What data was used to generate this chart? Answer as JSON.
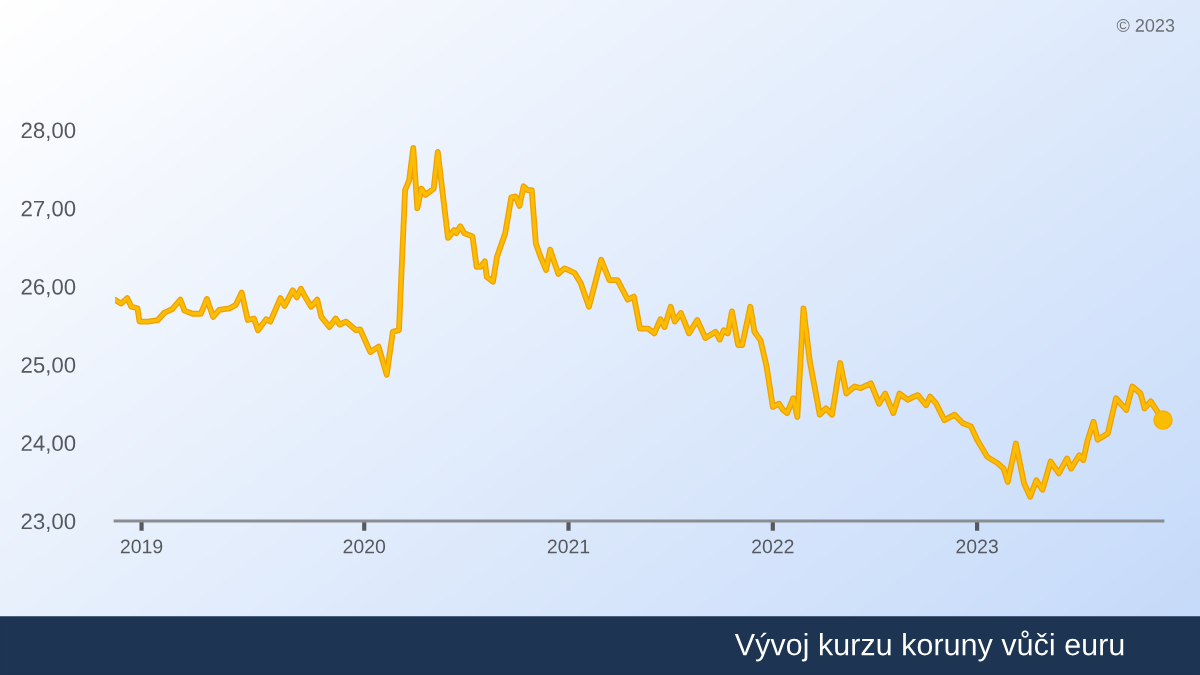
{
  "chart_data": {
    "type": "line",
    "title": "Vývoj kurzu koruny vůči euru",
    "annotations": [
      "© 2023"
    ],
    "xlim": [
      2018.78,
      2023.91
    ],
    "xticks": [
      {
        "value": 2018.91,
        "label": "2019"
      },
      2020,
      2021,
      2022,
      2023
    ],
    "ylim": [
      23,
      28
    ],
    "yticks": [
      {
        "value": 23,
        "label": "23,00"
      },
      {
        "value": 24,
        "label": "24,00"
      },
      {
        "value": 25,
        "label": "25,00"
      },
      {
        "value": 26,
        "label": "26,00"
      },
      {
        "value": 27,
        "label": "27,00"
      },
      {
        "value": 28,
        "label": "28,00"
      }
    ],
    "grid": false,
    "legend": false,
    "marker": "none",
    "line_style": "solid",
    "series": [
      {
        "color": "#fbbc04",
        "x": [
          2018.78,
          2018.81,
          2018.84,
          2018.86,
          2018.89,
          2018.9,
          2018.94,
          2018.99,
          2019.02,
          2019.06,
          2019.1,
          2019.12,
          2019.16,
          2019.2,
          2019.23,
          2019.26,
          2019.29,
          2019.34,
          2019.37,
          2019.4,
          2019.43,
          2019.46,
          2019.48,
          2019.52,
          2019.54,
          2019.59,
          2019.61,
          2019.65,
          2019.67,
          2019.69,
          2019.71,
          2019.74,
          2019.77,
          2019.79,
          2019.83,
          2019.86,
          2019.88,
          2019.91,
          2019.96,
          2019.98,
          2020.03,
          2020.07,
          2020.11,
          2020.14,
          2020.17,
          2020.2,
          2020.22,
          2020.24,
          2020.26,
          2020.28,
          2020.3,
          2020.34,
          2020.36,
          2020.38,
          2020.41,
          2020.44,
          2020.45,
          2020.47,
          2020.49,
          2020.53,
          2020.55,
          2020.57,
          2020.59,
          2020.6,
          2020.63,
          2020.65,
          2020.69,
          2020.72,
          2020.74,
          2020.76,
          2020.78,
          2020.8,
          2020.82,
          2020.84,
          2020.86,
          2020.89,
          2020.91,
          2020.95,
          2020.98,
          2021.0,
          2021.03,
          2021.06,
          2021.1,
          2021.13,
          2021.16,
          2021.2,
          2021.24,
          2021.29,
          2021.32,
          2021.35,
          2021.39,
          2021.42,
          2021.45,
          2021.47,
          2021.5,
          2021.52,
          2021.55,
          2021.59,
          2021.63,
          2021.67,
          2021.72,
          2021.74,
          2021.76,
          2021.78,
          2021.8,
          2021.83,
          2021.85,
          2021.89,
          2021.91,
          2021.94,
          2021.97,
          2022.0,
          2022.03,
          2022.05,
          2022.07,
          2022.1,
          2022.12,
          2022.15,
          2022.18,
          2022.23,
          2022.26,
          2022.29,
          2022.33,
          2022.36,
          2022.4,
          2022.43,
          2022.48,
          2022.52,
          2022.55,
          2022.59,
          2022.62,
          2022.66,
          2022.69,
          2022.71,
          2022.75,
          2022.77,
          2022.8,
          2022.84,
          2022.89,
          2022.93,
          2022.97,
          2023.0,
          2023.05,
          2023.1,
          2023.13,
          2023.15,
          2023.19,
          2023.23,
          2023.26,
          2023.29,
          2023.32,
          2023.36,
          2023.4,
          2023.44,
          2023.46,
          2023.5,
          2023.52,
          2023.54,
          2023.57,
          2023.59,
          2023.64,
          2023.68,
          2023.73,
          2023.76,
          2023.8,
          2023.82,
          2023.85,
          2023.91
        ],
        "values": [
          25.83,
          25.78,
          25.85,
          25.74,
          25.72,
          25.55,
          25.55,
          25.57,
          25.66,
          25.71,
          25.83,
          25.69,
          25.65,
          25.65,
          25.84,
          25.61,
          25.7,
          25.72,
          25.76,
          25.92,
          25.57,
          25.59,
          25.44,
          25.58,
          25.55,
          25.85,
          25.75,
          25.95,
          25.86,
          25.97,
          25.87,
          25.74,
          25.83,
          25.61,
          25.48,
          25.59,
          25.51,
          25.55,
          25.44,
          25.45,
          25.16,
          25.23,
          24.87,
          25.42,
          25.44,
          27.23,
          27.36,
          27.77,
          27.0,
          27.25,
          27.17,
          27.25,
          27.72,
          27.28,
          26.62,
          26.72,
          26.68,
          26.77,
          26.68,
          26.64,
          26.25,
          26.25,
          26.32,
          26.12,
          26.06,
          26.38,
          26.68,
          27.14,
          27.15,
          27.03,
          27.28,
          27.23,
          27.23,
          26.55,
          26.4,
          26.21,
          26.47,
          26.16,
          26.23,
          26.21,
          26.17,
          26.04,
          25.74,
          26.04,
          26.34,
          26.08,
          26.08,
          25.83,
          25.87,
          25.46,
          25.46,
          25.4,
          25.58,
          25.48,
          25.74,
          25.55,
          25.66,
          25.4,
          25.57,
          25.34,
          25.42,
          25.32,
          25.44,
          25.4,
          25.68,
          25.25,
          25.25,
          25.74,
          25.42,
          25.31,
          24.97,
          24.46,
          24.5,
          24.42,
          24.38,
          24.57,
          24.33,
          25.72,
          25.06,
          24.36,
          24.44,
          24.36,
          25.02,
          24.63,
          24.72,
          24.7,
          24.76,
          24.5,
          24.63,
          24.38,
          24.63,
          24.55,
          24.59,
          24.61,
          24.48,
          24.59,
          24.5,
          24.29,
          24.36,
          24.25,
          24.21,
          24.04,
          23.82,
          23.74,
          23.67,
          23.5,
          23.99,
          23.48,
          23.31,
          23.52,
          23.4,
          23.76,
          23.61,
          23.8,
          23.67,
          23.84,
          23.78,
          24.02,
          24.27,
          24.04,
          24.12,
          24.57,
          24.42,
          24.72,
          24.63,
          24.44,
          24.53,
          24.29
        ]
      },
      {
        "type": "scatter",
        "color": "#fbbc04",
        "marker": "circle",
        "x": [
          2023.91
        ],
        "values": [
          24.29
        ]
      }
    ]
  }
}
